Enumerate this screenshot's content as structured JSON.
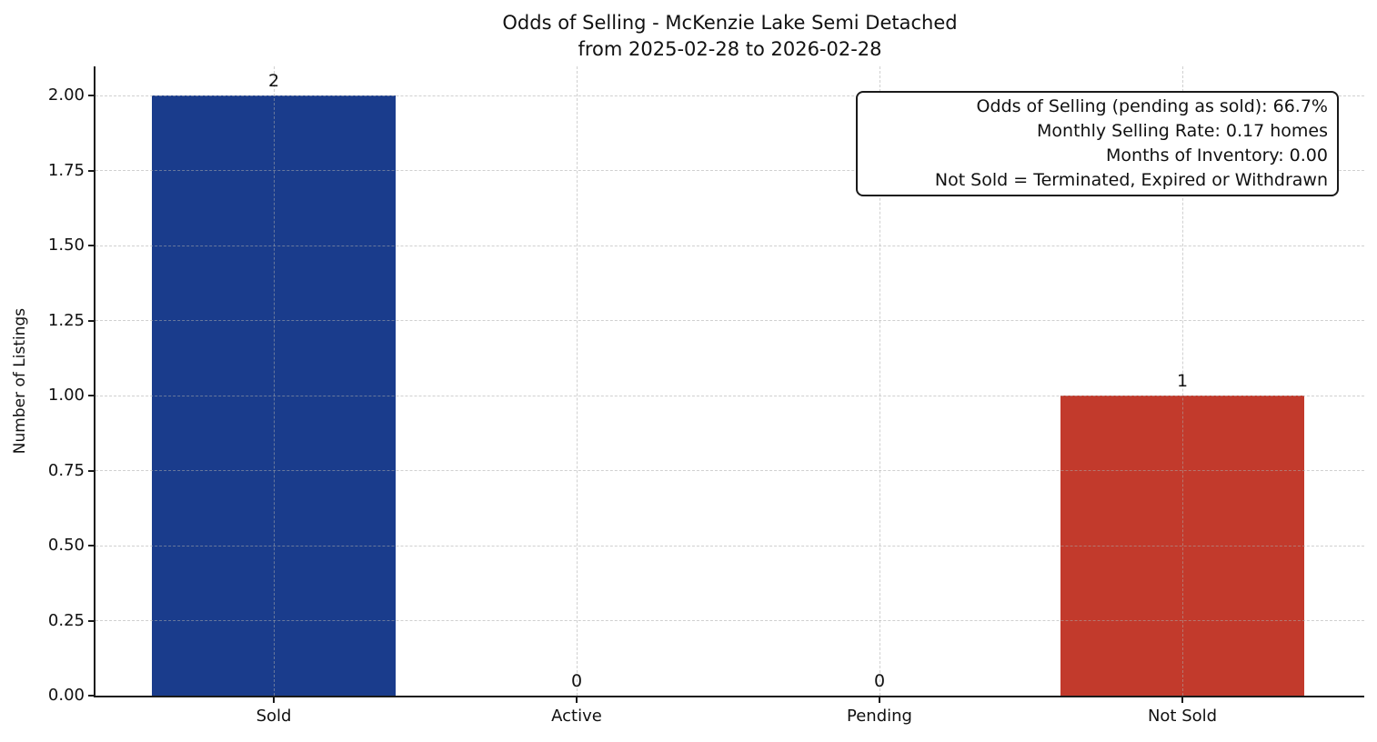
{
  "title": {
    "line1": "Odds of Selling - McKenzie Lake Semi Detached",
    "line2": "from 2025-02-28 to 2026-02-28"
  },
  "chart_data": {
    "type": "bar",
    "title": "Odds of Selling - McKenzie Lake Semi Detached",
    "subtitle": "from 2025-02-28 to 2026-02-28",
    "categories": [
      "Sold",
      "Active",
      "Pending",
      "Not Sold"
    ],
    "values": [
      2,
      0,
      0,
      1
    ],
    "value_labels": [
      "2",
      "0",
      "0",
      "1"
    ],
    "bar_colors": [
      "#1a3c8c",
      "#1a3c8c",
      "#1a3c8c",
      "#c23a2c"
    ],
    "xlabel": "",
    "ylabel": "Number of Listings",
    "ylim": [
      0,
      2.1
    ],
    "yticks": {
      "values": [
        0.0,
        0.25,
        0.5,
        0.75,
        1.0,
        1.25,
        1.5,
        1.75,
        2.0
      ],
      "labels": [
        "0.00",
        "0.25",
        "0.50",
        "0.75",
        "1.00",
        "1.25",
        "1.50",
        "1.75",
        "2.00"
      ]
    },
    "grid": {
      "visible": true,
      "style": "dashed",
      "axes": "both"
    },
    "legend_position": "none",
    "annotation_box": {
      "position": "top-right",
      "lines": [
        "Odds of Selling (pending as sold): 66.7%",
        "Monthly Selling Rate: 0.17 homes",
        "Months of Inventory: 0.00",
        "Not Sold = Terminated, Expired or Withdrawn"
      ]
    }
  }
}
